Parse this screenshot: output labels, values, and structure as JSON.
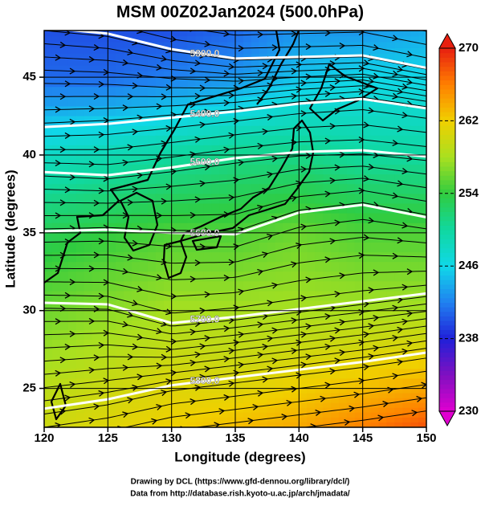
{
  "footer": [
    "Drawing by DCL (https://www.gfd-dennou.org/library/dcl/)",
    "Data from http://database.rish.kyoto-u.ac.jp/arch/jmadata/"
  ],
  "chart_data": {
    "type": "contour",
    "title": "MSM 00Z02Jan2024 (500.0hPa)",
    "xlabel": "Longitude (degrees)",
    "ylabel": "Latitude  (degrees)",
    "xlim": [
      120,
      150
    ],
    "ylim": [
      22.5,
      48
    ],
    "xticks": [
      120,
      125,
      130,
      135,
      140,
      145,
      150
    ],
    "yticks": [
      25,
      30,
      35,
      40,
      45
    ],
    "grid": true,
    "field": {
      "x": [
        120,
        125,
        130,
        135,
        140,
        145,
        150
      ],
      "y": [
        48,
        45,
        40,
        35,
        30,
        25,
        22.5
      ],
      "values": [
        [
          240,
          240,
          240,
          241,
          243,
          243,
          244
        ],
        [
          241,
          241,
          242,
          243,
          245,
          246,
          246
        ],
        [
          248,
          249,
          250,
          251,
          251,
          250,
          250
        ],
        [
          253,
          254,
          255,
          255,
          256,
          255,
          255
        ],
        [
          256,
          257,
          258,
          258,
          258,
          258,
          258
        ],
        [
          259,
          260,
          261,
          261,
          262,
          263,
          264
        ],
        [
          260,
          261,
          262,
          263,
          264,
          266,
          268
        ]
      ]
    },
    "colorbar": {
      "lim": [
        230,
        270
      ],
      "ticks": [
        230,
        238,
        246,
        254,
        262,
        270
      ],
      "colors": [
        "#e000d0",
        "#8010c0",
        "#2020d8",
        "#2080f0",
        "#10d8e8",
        "#10d8a0",
        "#30cc40",
        "#a8e020",
        "#f0d000",
        "#ff8000",
        "#e82010"
      ]
    },
    "contours": [
      {
        "level": {
          "value": 5300,
          "label": "5300.0"
        },
        "x": [
          120,
          125,
          130,
          135,
          140,
          145,
          150
        ],
        "y": [
          48.2,
          47.8,
          46.8,
          46.2,
          46.3,
          46.4,
          45.6
        ]
      },
      {
        "level": {
          "value": 5400,
          "label": "5400.0"
        },
        "x": [
          120,
          125,
          130,
          135,
          140,
          145,
          150
        ],
        "y": [
          41.8,
          42.0,
          42.4,
          42.8,
          43.3,
          43.6,
          43.0
        ]
      },
      {
        "level": {
          "value": 5500,
          "label": "5500.0"
        },
        "x": [
          120,
          125,
          130,
          135,
          140,
          145,
          150
        ],
        "y": [
          38.9,
          38.7,
          39.2,
          39.8,
          40.2,
          40.3,
          39.9
        ]
      },
      {
        "level": {
          "value": 5600,
          "label": "5600.0"
        },
        "x": [
          120,
          125,
          130,
          135,
          140,
          145,
          150
        ],
        "y": [
          35.1,
          35.2,
          35.0,
          34.9,
          36.3,
          36.8,
          36.0
        ]
      },
      {
        "level": {
          "value": 5700,
          "label": "5700.0"
        },
        "x": [
          120,
          125,
          130,
          135,
          140,
          145,
          150
        ],
        "y": [
          30.5,
          30.4,
          29.2,
          29.6,
          30.1,
          30.6,
          31.1
        ]
      },
      {
        "level": {
          "value": 5800,
          "label": "5800.0"
        },
        "x": [
          120,
          125,
          130,
          135,
          140,
          145,
          150
        ],
        "y": [
          23.7,
          24.3,
          25.2,
          25.7,
          26.2,
          26.7,
          27.3
        ]
      }
    ],
    "contour_color": "#ffffff"
  }
}
